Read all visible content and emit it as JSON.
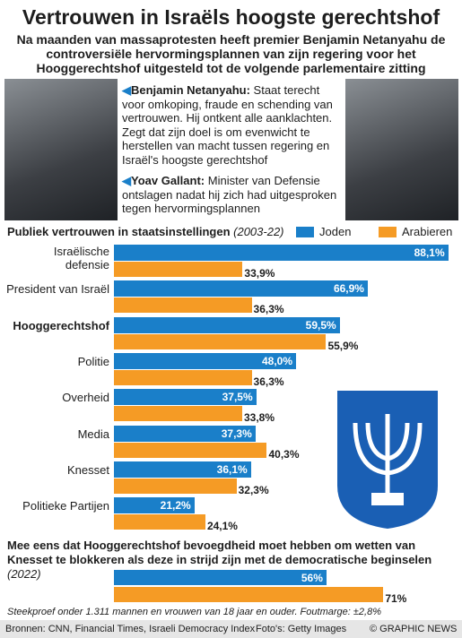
{
  "title": "Vertrouwen in Israëls hoogste gerechtshof",
  "subtitle": "Na maanden van massaprotesten heeft premier Benjamin Netanyahu de controversiële hervormingsplannen van zijn regering voor het Hooggerechtshof uitgesteld tot de volgende parlementaire zitting",
  "captions": [
    {
      "name": "Benjamin Netanyahu:",
      "text": "Staat terecht voor omkoping, fraude en schending van vertrouwen. Hij ontkent alle aanklachten. Zegt dat zijn doel is om evenwicht te herstellen van macht tussen regering en Israël's hoogste gerechtshof"
    },
    {
      "name": "Yoav Gallant:",
      "text": "Minister van Defensie ontslagen nadat hij zich had uitgesproken tegen hervormingsplannen"
    }
  ],
  "chart_data": [
    {
      "type": "bar",
      "orientation": "horizontal",
      "title": "Publiek vertrouwen in staatsinstellingen",
      "period": "(2003-22)",
      "categories": [
        "Israëlische defensie",
        "President van Israël",
        "Hooggerechtshof",
        "Politie",
        "Overheid",
        "Media",
        "Knesset",
        "Politieke Partijen"
      ],
      "series": [
        {
          "name": "Joden",
          "color": "#1a7fc9",
          "values": [
            88.1,
            66.9,
            59.5,
            48.0,
            37.5,
            37.3,
            36.1,
            21.2
          ],
          "value_labels": [
            "88,1%",
            "66,9%",
            "59,5%",
            "48,0%",
            "37,5%",
            "37,3%",
            "36,1%",
            "21,2%"
          ]
        },
        {
          "name": "Arabieren",
          "color": "#f59b25",
          "values": [
            33.9,
            36.3,
            55.9,
            36.3,
            33.8,
            40.3,
            32.3,
            24.1
          ],
          "value_labels": [
            "33,9%",
            "36,3%",
            "55,9%",
            "36,3%",
            "33,8%",
            "40,3%",
            "32,3%",
            "24,1%"
          ]
        }
      ]
    },
    {
      "type": "bar",
      "orientation": "horizontal",
      "title": "Mee eens dat Hooggerechtshof bevoegdheid moet hebben om wetten van Knesset te blokkeren als deze in strijd zijn met de democratische beginselen",
      "period": "(2022)",
      "values": [
        56,
        71
      ],
      "value_labels": [
        "56%",
        "71%"
      ],
      "colors": [
        "#1a7fc9",
        "#f59b25"
      ]
    }
  ],
  "footnote": "Steekproef onder 1.311 mannen en vrouwen van 18 jaar en ouder. Foutmarge: ±2,8%",
  "sources": "Bronnen: CNN, Financial Times, Israeli Democracy Index",
  "photo_credit": "Foto's: Getty Images",
  "copyright": "© GRAPHIC NEWS"
}
